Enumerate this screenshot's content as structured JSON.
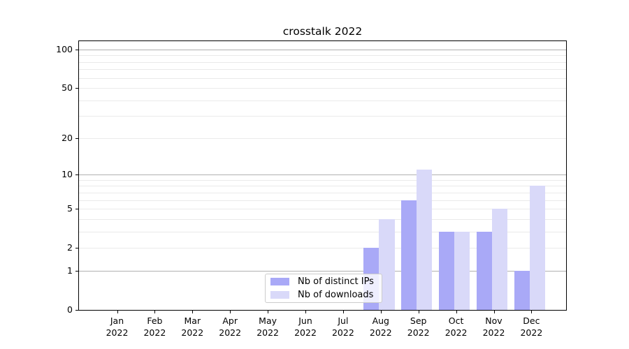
{
  "title": "crosstalk 2022",
  "legend": {
    "items": [
      {
        "label": "Nb of distinct IPs",
        "color": "#a9a9f7"
      },
      {
        "label": "Nb of downloads",
        "color": "#d9d9f9"
      }
    ]
  },
  "chart_data": {
    "type": "bar",
    "title": "crosstalk 2022",
    "categories": [
      "Jan 2022",
      "Feb 2022",
      "Mar 2022",
      "Apr 2022",
      "May 2022",
      "Jun 2022",
      "Jul 2022",
      "Aug 2022",
      "Sep 2022",
      "Oct 2022",
      "Nov 2022",
      "Dec 2022"
    ],
    "series": [
      {
        "name": "Nb of distinct IPs",
        "color": "#a9a9f7",
        "values": [
          0,
          0,
          0,
          0,
          0,
          0,
          0,
          2,
          6,
          3,
          3,
          1
        ]
      },
      {
        "name": "Nb of downloads",
        "color": "#d9d9f9",
        "values": [
          0,
          0,
          0,
          0,
          0,
          0,
          0,
          4,
          11,
          3,
          5,
          8
        ]
      }
    ],
    "xlabel": "",
    "ylabel": "",
    "yscale": "log1p",
    "yticks": [
      0,
      1,
      2,
      5,
      10,
      20,
      50,
      100
    ],
    "ylim": [
      0,
      100
    ],
    "grid": true,
    "legend_position": "lower center"
  },
  "colors": {
    "background": "#ffffff",
    "axis": "#000000",
    "grid_major": "#b0b0b0",
    "grid_minor": "#eaeaea",
    "legend_border": "#cccccc"
  }
}
